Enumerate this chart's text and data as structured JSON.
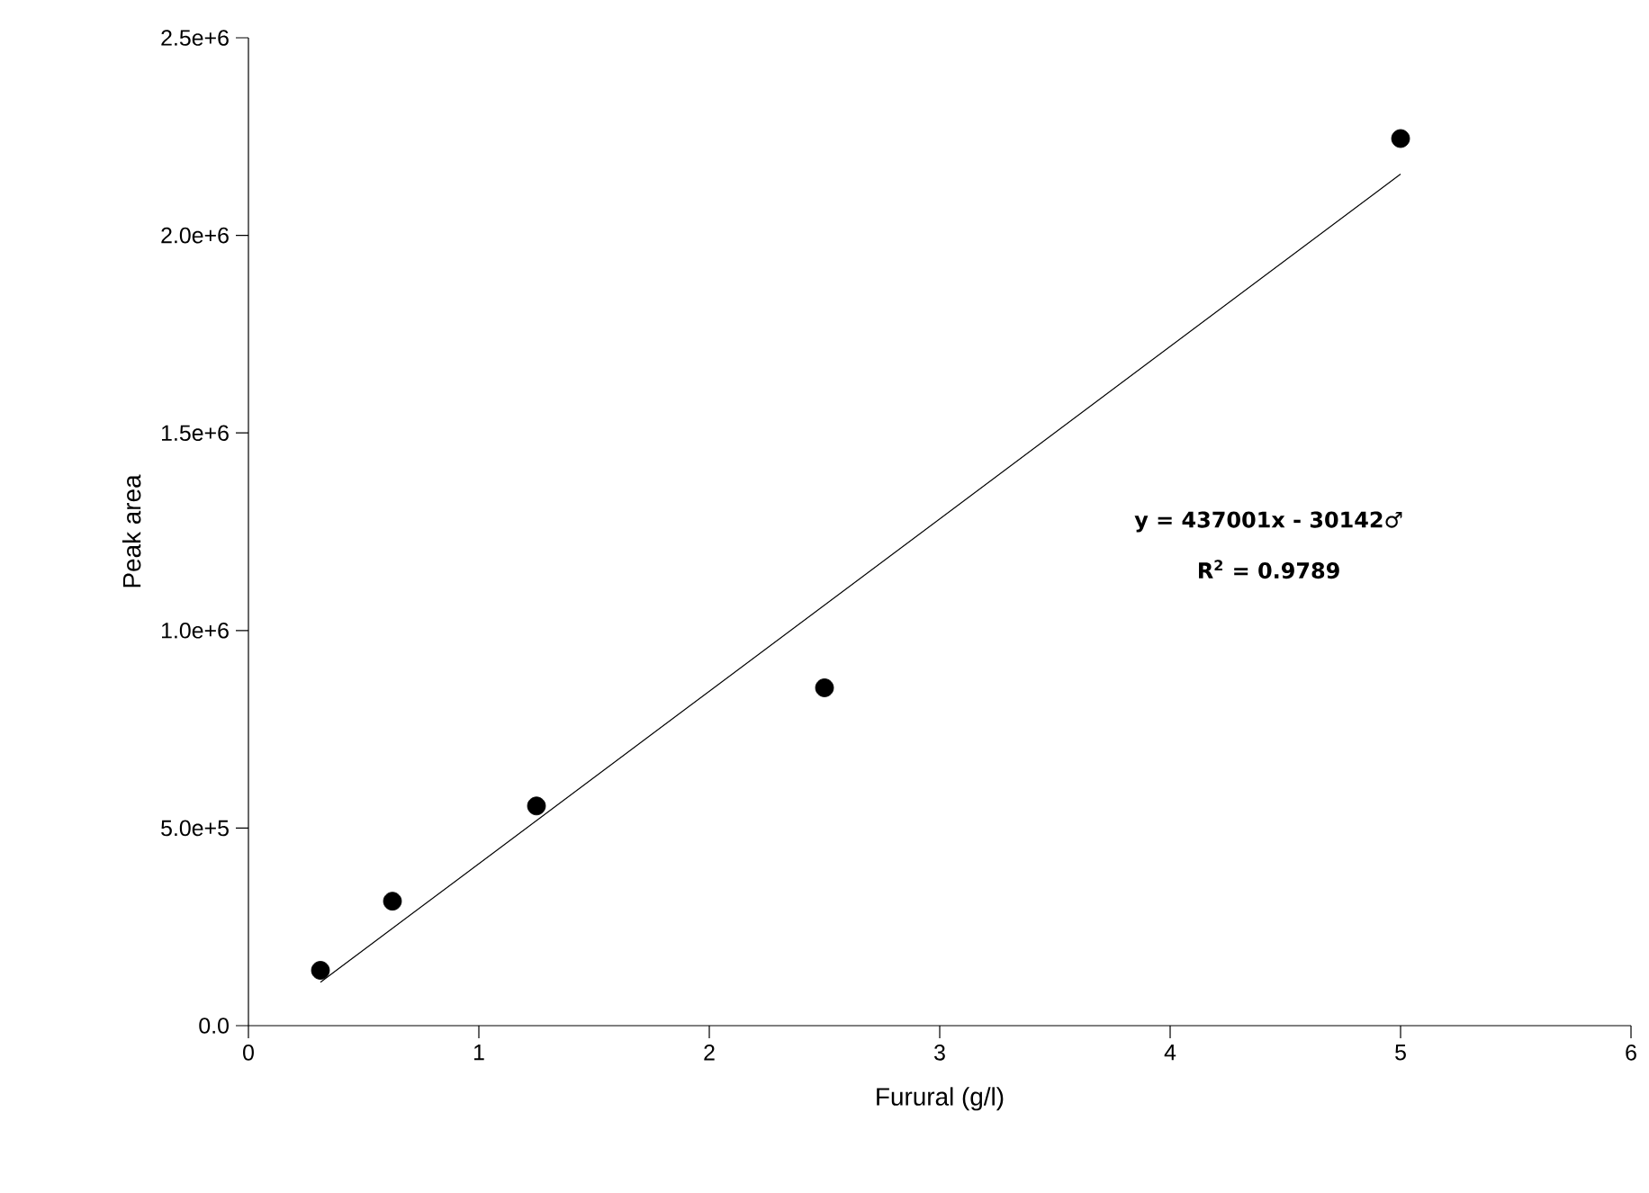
{
  "chart_data": {
    "type": "scatter",
    "xlabel": "Furural (g/l)",
    "ylabel": "Peak area",
    "xlim": [
      0,
      6
    ],
    "ylim": [
      0,
      2500000
    ],
    "xticks": [
      0,
      1,
      2,
      3,
      4,
      5,
      6
    ],
    "yticks": [
      {
        "value": 0,
        "label": "0.0"
      },
      {
        "value": 500000,
        "label": "5.0e+5"
      },
      {
        "value": 1000000,
        "label": "1.0e+6"
      },
      {
        "value": 1500000,
        "label": "1.5e+6"
      },
      {
        "value": 2000000,
        "label": "2.0e+6"
      },
      {
        "value": 2500000,
        "label": "2.5e+6"
      }
    ],
    "grid": false,
    "series": [
      {
        "marker": "circle",
        "color": "#000000",
        "x": [
          0.3125,
          0.625,
          1.25,
          2.5,
          5
        ],
        "values": [
          140000,
          315000,
          556000,
          855000,
          2245000
        ]
      },
      {
        "type": "line",
        "marker": "none",
        "line_style": "solid",
        "color": "#000000",
        "x": [
          0.3125,
          5
        ],
        "values": [
          110000,
          2155000
        ]
      }
    ],
    "annotations": [
      "y = 437001x - 30142♂",
      "R$^{2}$ = 0.9789"
    ]
  }
}
